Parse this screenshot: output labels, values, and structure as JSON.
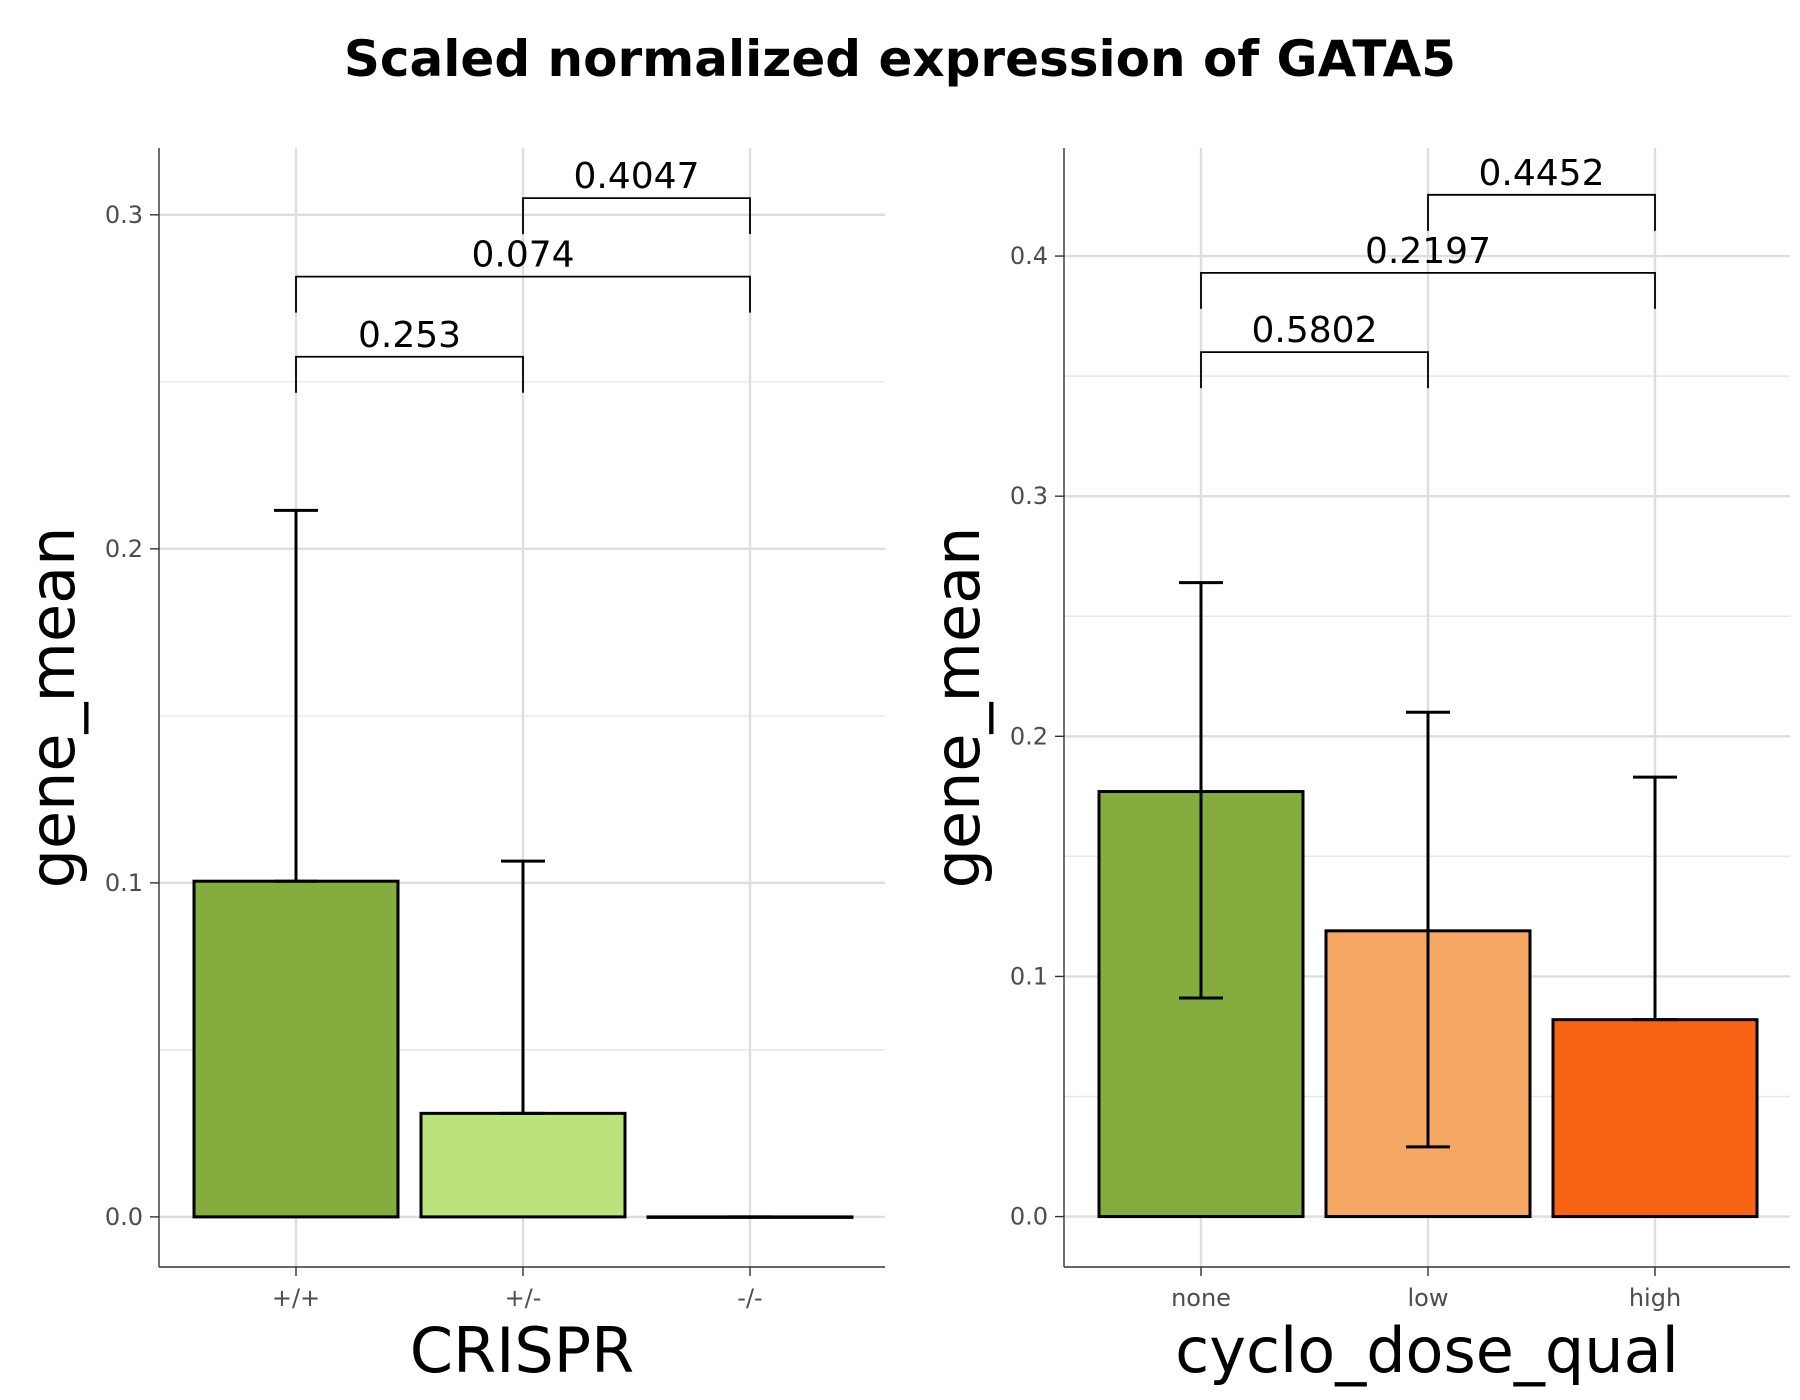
{
  "title": "Scaled normalized expression of GATA5",
  "chart_data": [
    {
      "type": "bar",
      "xlabel": "CRISPR",
      "ylabel": "gene_mean",
      "ylim": [
        -0.015,
        0.32
      ],
      "yticks": [
        0.0,
        0.1,
        0.2,
        0.3
      ],
      "ytick_labels": [
        "0.0",
        "0.1",
        "0.2",
        "0.3"
      ],
      "categories": [
        "+/+",
        "+/-",
        "-/-"
      ],
      "values": [
        0.1005,
        0.031,
        0.0
      ],
      "errors": [
        {
          "low": 0.1005,
          "high": 0.2115
        },
        {
          "low": 0.031,
          "high": 0.1065
        },
        {
          "low": 0.0,
          "high": 0.0
        }
      ],
      "colors": [
        "#84AD3E",
        "#BBE37B",
        "#D8F0A8"
      ],
      "comparisons": [
        {
          "a": 0,
          "b": 1,
          "label": "0.253",
          "y": 0.2575
        },
        {
          "a": 0,
          "b": 2,
          "label": "0.074",
          "y": 0.2815
        },
        {
          "a": 1,
          "b": 2,
          "label": "0.4047",
          "y": 0.305
        }
      ]
    },
    {
      "type": "bar",
      "xlabel": "cyclo_dose_qual",
      "ylabel": "gene_mean",
      "ylim": [
        -0.021,
        0.445
      ],
      "yticks": [
        0.0,
        0.1,
        0.2,
        0.3,
        0.4
      ],
      "ytick_labels": [
        "0.0",
        "0.1",
        "0.2",
        "0.3",
        "0.4"
      ],
      "categories": [
        "none",
        "low",
        "high"
      ],
      "values": [
        0.177,
        0.119,
        0.082
      ],
      "errors": [
        {
          "low": 0.091,
          "high": 0.264
        },
        {
          "low": 0.029,
          "high": 0.21
        },
        {
          "low": 0.082,
          "high": 0.183
        }
      ],
      "colors": [
        "#84AD3E",
        "#F5A764",
        "#F76413"
      ],
      "comparisons": [
        {
          "a": 0,
          "b": 1,
          "label": "0.5802",
          "y": 0.36
        },
        {
          "a": 0,
          "b": 2,
          "label": "0.2197",
          "y": 0.393
        },
        {
          "a": 1,
          "b": 2,
          "label": "0.4452",
          "y": 0.4255
        }
      ]
    }
  ]
}
